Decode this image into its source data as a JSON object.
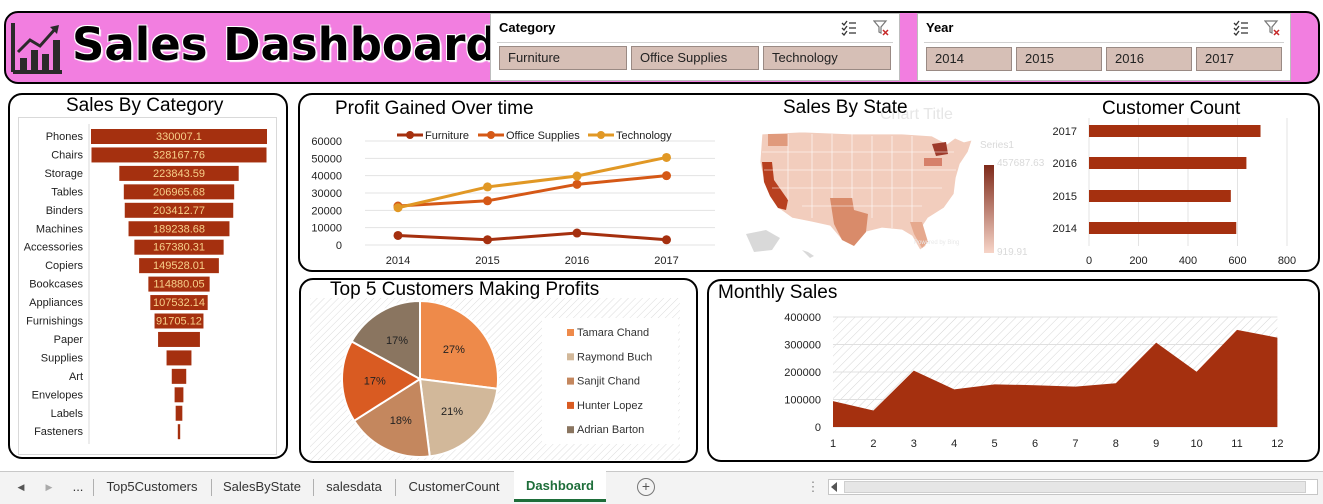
{
  "header": {
    "title": "Sales Dashboard",
    "bg_color": "#f27ee0",
    "icon": "bar-chart-trend-icon"
  },
  "slicers": {
    "category": {
      "title": "Category",
      "items": [
        "Furniture",
        "Office Supplies",
        "Technology"
      ],
      "icons": [
        "multi-select-icon",
        "clear-filter-icon"
      ]
    },
    "year": {
      "title": "Year",
      "items": [
        "2014",
        "2015",
        "2016",
        "2017"
      ],
      "icons": [
        "multi-select-icon",
        "clear-filter-icon"
      ]
    }
  },
  "sales_by_category": {
    "title": "Sales By Category"
  },
  "profit_over_time": {
    "title": "Profit Gained Over time"
  },
  "sales_by_state": {
    "title": "Sales By State",
    "ghost_title": "Chart Title",
    "legend_series": "Series1",
    "legend_max": "457687.63",
    "legend_min": "919.91",
    "credit": "Powered by Bing"
  },
  "customer_count": {
    "title": "Customer Count"
  },
  "top5_customers": {
    "title": "Top 5 Customers Making Profits"
  },
  "monthly_sales": {
    "title": "Monthly Sales"
  },
  "colors": {
    "bar": "#a5300f",
    "furniture": "#a5300f",
    "office_supplies": "#d55816",
    "technology": "#e19825",
    "area": "#a5300f",
    "slicer_button": "#d6bfb6",
    "panel_border": "#000000"
  },
  "chart_data": [
    {
      "type": "bar",
      "orientation": "horizontal",
      "title": "Sales By Category",
      "categories": [
        "Phones",
        "Chairs",
        "Storage",
        "Tables",
        "Binders",
        "Machines",
        "Accessories",
        "Copiers",
        "Bookcases",
        "Appliances",
        "Furnishings",
        "Paper",
        "Supplies",
        "Art",
        "Envelopes",
        "Labels",
        "Fasteners"
      ],
      "values": [
        330007.1,
        328167.76,
        223843.59,
        206965.68,
        203412.77,
        189238.68,
        167380.31,
        149528.01,
        114880.05,
        107532.14,
        91705.12,
        78479,
        46673,
        27119,
        16476,
        12486,
        3024
      ],
      "data_labels": [
        "330007.1",
        "328167.76",
        "223843.59",
        "206965.68",
        "203412.77",
        "189238.68",
        "167380.31",
        "149528.01",
        "114880.05",
        "107532.14",
        "91705.12",
        "",
        "",
        "",
        "",
        "",
        ""
      ],
      "layout": "centered funnel"
    },
    {
      "type": "line",
      "title": "Profit Gained Over time",
      "x": [
        "2014",
        "2015",
        "2016",
        "2017"
      ],
      "ylim": [
        0,
        60000
      ],
      "yticks": [
        "0",
        "10000",
        "20000",
        "30000",
        "40000",
        "50000",
        "60000"
      ],
      "legend_position": "top",
      "series": [
        {
          "name": "Furniture",
          "values": [
            5500,
            3000,
            6900,
            3000
          ]
        },
        {
          "name": "Office Supplies",
          "values": [
            22500,
            25500,
            35000,
            40000
          ]
        },
        {
          "name": "Technology",
          "values": [
            21500,
            33500,
            39800,
            50500
          ]
        }
      ]
    },
    {
      "type": "bar",
      "orientation": "horizontal",
      "title": "Customer Count",
      "categories": [
        "2017",
        "2016",
        "2015",
        "2014"
      ],
      "values": [
        693,
        636,
        573,
        595
      ],
      "xlim": [
        0,
        800
      ],
      "xticks": [
        "0",
        "200",
        "400",
        "600",
        "800"
      ]
    },
    {
      "type": "pie",
      "title": "Top 5 Customers Making Profits",
      "labels": [
        "Tamara Chand",
        "Raymond Buch",
        "Sanjit Chand",
        "Hunter Lopez",
        "Adrian Barton"
      ],
      "values": [
        27,
        21,
        18,
        17,
        17
      ],
      "data_labels": [
        "27%",
        "21%",
        "18%",
        "17%",
        "17%"
      ],
      "colors": [
        "#ee8a4a",
        "#d2b89a",
        "#c4875e",
        "#d95b22",
        "#8a7560"
      ],
      "legend_position": "right"
    },
    {
      "type": "area",
      "title": "Monthly Sales",
      "x": [
        "1",
        "2",
        "3",
        "4",
        "5",
        "6",
        "7",
        "8",
        "9",
        "10",
        "11",
        "12"
      ],
      "values": [
        94000,
        60000,
        205000,
        137000,
        155000,
        152000,
        147000,
        159000,
        307000,
        201000,
        353000,
        325000
      ],
      "ylim": [
        0,
        400000
      ],
      "yticks": [
        "0",
        "100000",
        "200000",
        "300000",
        "400000"
      ]
    }
  ],
  "tabs": {
    "nav_prev": "◀",
    "nav_next": "▶",
    "more": "...",
    "items": [
      "Top5Customers",
      "SalesByState",
      "salesdata",
      "CustomerCount",
      "Dashboard"
    ],
    "active": "Dashboard",
    "add": "+",
    "options": "⋮"
  }
}
